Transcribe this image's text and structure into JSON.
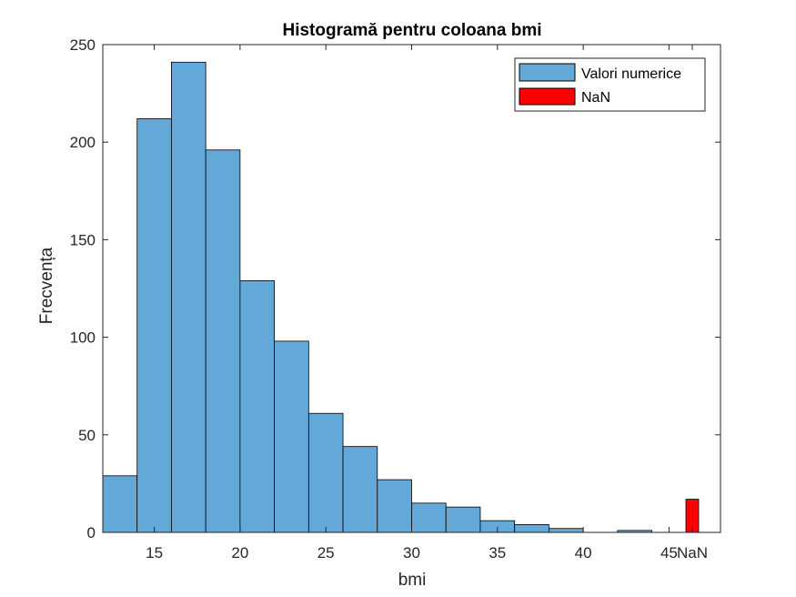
{
  "chart_data": {
    "type": "bar",
    "title": "Histogramă pentru coloana bmi",
    "xlabel": "bmi",
    "ylabel": "Frecvența",
    "xlim": [
      12,
      48
    ],
    "ylim": [
      0,
      250
    ],
    "xticks": [
      15,
      20,
      25,
      30,
      35,
      40,
      45
    ],
    "yticks": [
      0,
      50,
      100,
      150,
      200,
      250
    ],
    "nan_tick_label": "NaN",
    "grid": false,
    "legend_position": "top-right",
    "series": [
      {
        "name": "Valori numerice",
        "color": "#62a8d8",
        "bin_width": 2,
        "bins": [
          {
            "x0": 12,
            "value": 29
          },
          {
            "x0": 14,
            "value": 212
          },
          {
            "x0": 16,
            "value": 241
          },
          {
            "x0": 18,
            "value": 196
          },
          {
            "x0": 20,
            "value": 129
          },
          {
            "x0": 22,
            "value": 98
          },
          {
            "x0": 24,
            "value": 61
          },
          {
            "x0": 26,
            "value": 44
          },
          {
            "x0": 28,
            "value": 27
          },
          {
            "x0": 30,
            "value": 15
          },
          {
            "x0": 32,
            "value": 13
          },
          {
            "x0": 34,
            "value": 6
          },
          {
            "x0": 36,
            "value": 4
          },
          {
            "x0": 38,
            "value": 2
          },
          {
            "x0": 40,
            "value": 0
          },
          {
            "x0": 42,
            "value": 1
          },
          {
            "x0": 44,
            "value": 0
          },
          {
            "x0": 46,
            "value": 0
          }
        ]
      },
      {
        "name": "NaN",
        "color": "#ff0000",
        "value": 17
      }
    ]
  }
}
